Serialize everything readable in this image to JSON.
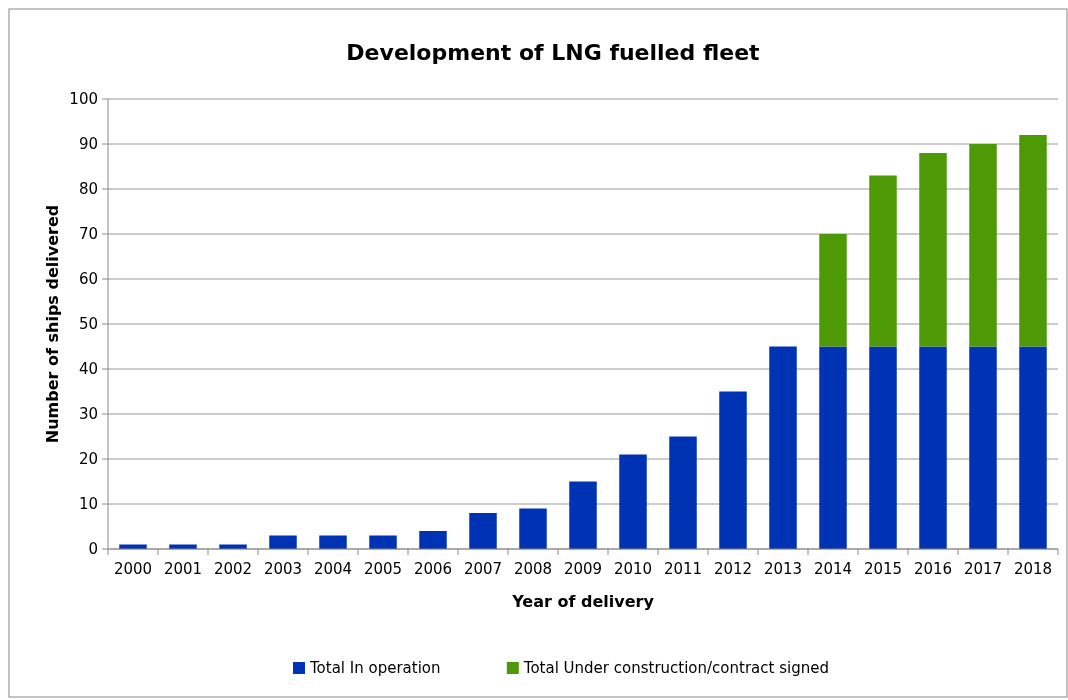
{
  "chart_data": {
    "type": "bar",
    "title": "Development of LNG fuelled fleet",
    "xlabel": "Year of delivery",
    "ylabel": "Number of ships delivered",
    "categories": [
      "2000",
      "2001",
      "2002",
      "2003",
      "2004",
      "2005",
      "2006",
      "2007",
      "2008",
      "2009",
      "2010",
      "2011",
      "2012",
      "2013",
      "2014",
      "2015",
      "2016",
      "2017",
      "2018"
    ],
    "series": [
      {
        "name": "Total In operation",
        "color": "#0033b4",
        "values": [
          1,
          1,
          1,
          3,
          3,
          3,
          4,
          8,
          9,
          15,
          21,
          25,
          35,
          45,
          45,
          45,
          45,
          45,
          45
        ]
      },
      {
        "name": "Total Under construction/contract signed",
        "color": "#4e9a06",
        "values": [
          null,
          null,
          null,
          null,
          null,
          null,
          null,
          null,
          null,
          null,
          null,
          null,
          null,
          null,
          25,
          38,
          43,
          45,
          47
        ]
      }
    ],
    "stacked": true,
    "ylim": [
      0,
      100
    ],
    "yticks": [
      0,
      10,
      20,
      30,
      40,
      50,
      60,
      70,
      80,
      90,
      100
    ],
    "grid": "y",
    "legend": "bottom"
  }
}
